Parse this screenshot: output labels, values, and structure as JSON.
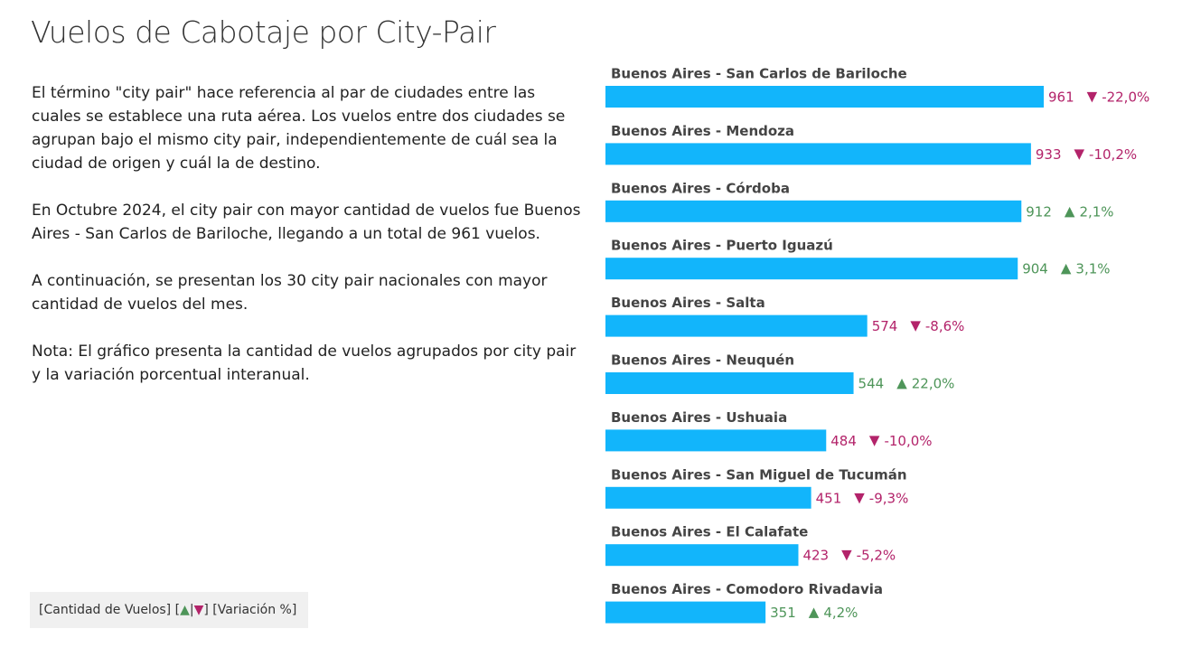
{
  "title": "Vuelos de Cabotaje por City-Pair",
  "paragraphs": [
    "El término \"city pair\" hace referencia al par de ciudades entre las cuales se establece una ruta aérea. Los vuelos entre dos ciudades se agrupan bajo el mismo city pair, independientemente de cuál sea la ciudad de origen y cuál la de destino.",
    "En Octubre 2024, el city pair con mayor cantidad de vuelos fue Buenos Aires - San Carlos de Bariloche, llegando a un total de 961 vuelos.",
    "A continuación, se presentan los 30 city pair nacionales con mayor cantidad de vuelos del mes.",
    "Nota: El gráfico presenta la cantidad de vuelos agrupados por city pair y la variación porcentual interanual."
  ],
  "chart_data": {
    "type": "bar",
    "orientation": "horizontal",
    "categories": [
      "Buenos Aires - San Carlos de Bariloche",
      "Buenos Aires - Mendoza",
      "Buenos Aires - Córdoba",
      "Buenos Aires - Puerto Iguazú",
      "Buenos Aires - Salta",
      "Buenos Aires - Neuquén",
      "Buenos Aires - Ushuaia",
      "Buenos Aires - San Miguel de Tucumán",
      "Buenos Aires - El Calafate",
      "Buenos Aires - Comodoro Rivadavia"
    ],
    "series": [
      {
        "name": "[Cantidad de Vuelos]",
        "color": "#12b5fb",
        "values": [
          961,
          933,
          912,
          904,
          574,
          544,
          484,
          451,
          423,
          351
        ]
      },
      {
        "name": "[Variación %]",
        "values": [
          -22.0,
          -10.2,
          2.1,
          3.1,
          -8.6,
          22.0,
          -10.0,
          -9.3,
          -5.2,
          4.2
        ],
        "value_labels": [
          "-22,0%",
          "-10,2%",
          "2,1%",
          "3,1%",
          "-8,6%",
          "22,0%",
          "-10,0%",
          "-9,3%",
          "-5,2%",
          "4,2%"
        ]
      }
    ],
    "up_symbol": "▲",
    "down_symbol": "▼",
    "up_color": "#4e9559",
    "down_color": "#b3236a",
    "legend_marker": {
      "open": "[",
      "up": "▲",
      "sep": "|",
      "down": "▼",
      "close": "]"
    }
  }
}
